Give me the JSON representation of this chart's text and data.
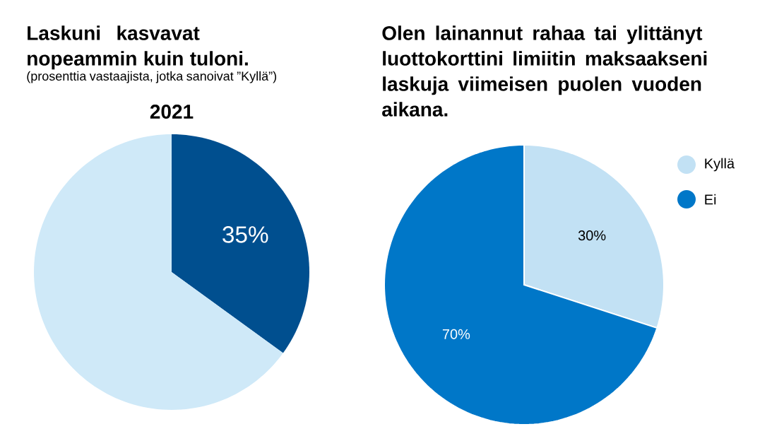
{
  "chart_data": [
    {
      "type": "pie",
      "title": "Laskuni kasvavat nopeammin kuin tuloni.",
      "subtitle": "(prosenttia vastaajista, jotka sanoivat ”Kyllä”)",
      "annotations": [
        "2021"
      ],
      "categories": [
        null,
        null
      ],
      "values": [
        35,
        65
      ],
      "colors": [
        "#004f8f",
        "#cfe9f8"
      ],
      "value_labels": [
        "35%",
        null
      ]
    },
    {
      "type": "pie",
      "title": "Olen lainannut rahaa tai ylittänyt luottokorttini limiitin maksaakseni laskuja viimeisen puolen vuoden aikana.",
      "categories": [
        "Kyllä",
        "Ei"
      ],
      "values": [
        30,
        70
      ],
      "colors": [
        "#c2e1f4",
        "#0077c8"
      ],
      "value_labels": [
        "30%",
        "70%"
      ],
      "legend": "right"
    }
  ]
}
